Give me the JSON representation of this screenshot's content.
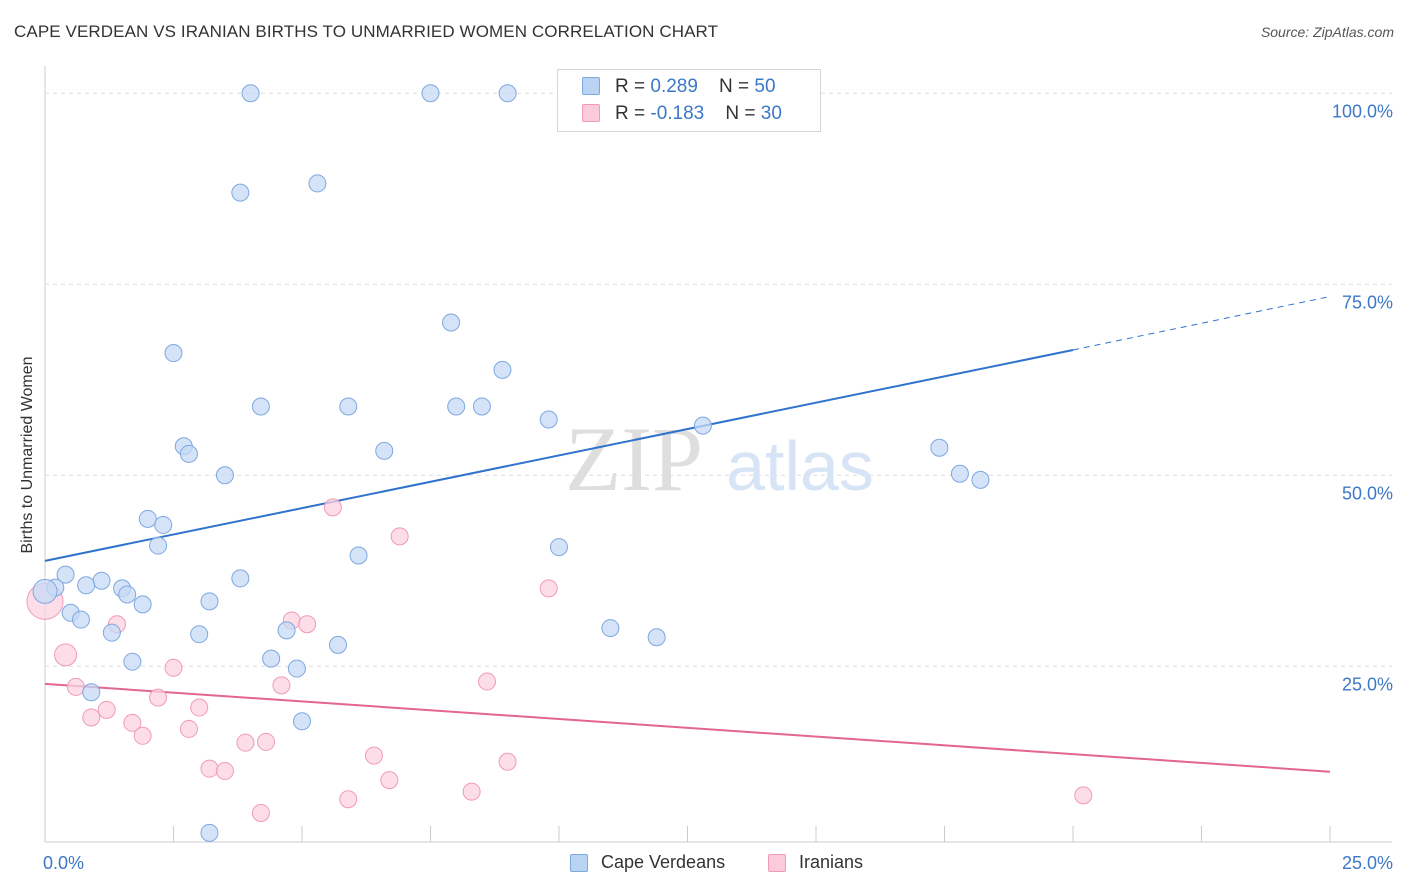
{
  "title": "CAPE VERDEAN VS IRANIAN BIRTHS TO UNMARRIED WOMEN CORRELATION CHART",
  "source": "Source: ZipAtlas.com",
  "watermark": {
    "zip": "ZIP",
    "atlas": "atlas"
  },
  "legend_top": {
    "rows": [
      {
        "r_label": "R = ",
        "r_value": "0.289",
        "n_label": "N = ",
        "n_value": "50",
        "color": "#b9d3f3"
      },
      {
        "r_label": "R = ",
        "r_value": "-0.183",
        "n_label": "N = ",
        "n_value": "30",
        "color": "#fbcbdb"
      }
    ]
  },
  "legend_bottom": {
    "items": [
      {
        "label": "Cape Verdeans",
        "color": "#b9d3f3"
      },
      {
        "label": "Iranians",
        "color": "#fbcbdb"
      }
    ]
  },
  "chart_data": {
    "type": "scatter",
    "title": "CAPE VERDEAN VS IRANIAN BIRTHS TO UNMARRIED WOMEN CORRELATION CHART",
    "xlabel": "",
    "ylabel": "Births to Unmarried Women",
    "xlim": [
      0,
      25
    ],
    "ylim": [
      2,
      102
    ],
    "x_tick_labels": [
      {
        "value": 0,
        "label": "0.0%"
      },
      {
        "value": 25,
        "label": "25.0%"
      }
    ],
    "y_tick_labels": [
      {
        "value": 25,
        "label": "25.0%"
      },
      {
        "value": 50,
        "label": "50.0%"
      },
      {
        "value": 75,
        "label": "75.0%"
      },
      {
        "value": 100,
        "label": "100.0%"
      }
    ],
    "x_minor_ticks": [
      2.5,
      5,
      7.5,
      10,
      12.5,
      15,
      17.5,
      20,
      22.5,
      25
    ],
    "y_gridlines": [
      25,
      50,
      75,
      100
    ],
    "series": [
      {
        "name": "Cape Verdeans",
        "color": "#7ea8df",
        "fill": "#c5daf5",
        "line_color": "#2f73cc",
        "trend": {
          "x0": 0,
          "y0": 38.8,
          "x1": 20,
          "y1": 66.4,
          "dash_to_x": 25,
          "dash_to_y": 73.4
        },
        "points": [
          [
            4.0,
            100.0
          ],
          [
            7.5,
            100.0
          ],
          [
            9.0,
            100.0
          ],
          [
            3.8,
            87.0
          ],
          [
            5.3,
            88.2
          ],
          [
            7.9,
            70.0
          ],
          [
            2.5,
            66.0
          ],
          [
            8.9,
            63.8
          ],
          [
            4.2,
            59.0
          ],
          [
            5.9,
            59.0
          ],
          [
            8.0,
            59.0
          ],
          [
            8.5,
            59.0
          ],
          [
            9.8,
            57.3
          ],
          [
            12.8,
            56.5
          ],
          [
            2.7,
            53.8
          ],
          [
            2.8,
            52.8
          ],
          [
            6.6,
            53.2
          ],
          [
            3.5,
            50.0
          ],
          [
            17.4,
            53.6
          ],
          [
            17.8,
            50.2
          ],
          [
            18.2,
            49.4
          ],
          [
            2.0,
            44.3
          ],
          [
            2.3,
            43.5
          ],
          [
            2.2,
            40.8
          ],
          [
            6.1,
            39.5
          ],
          [
            10.0,
            40.6
          ],
          [
            0.4,
            37.0
          ],
          [
            3.8,
            36.5
          ],
          [
            1.1,
            36.2
          ],
          [
            0.8,
            35.6
          ],
          [
            0.2,
            35.3
          ],
          [
            1.5,
            35.2
          ],
          [
            1.6,
            34.4
          ],
          [
            1.9,
            33.1
          ],
          [
            3.2,
            33.5
          ],
          [
            0.5,
            32.0
          ],
          [
            0.7,
            31.1
          ],
          [
            1.3,
            29.4
          ],
          [
            3.0,
            29.2
          ],
          [
            4.7,
            29.7
          ],
          [
            11.0,
            30.0
          ],
          [
            11.9,
            28.8
          ],
          [
            5.7,
            27.8
          ],
          [
            1.7,
            25.6
          ],
          [
            4.4,
            26.0
          ],
          [
            4.9,
            24.7
          ],
          [
            0.9,
            21.6
          ],
          [
            5.0,
            17.8
          ],
          [
            3.2,
            3.2
          ],
          [
            0.0,
            34.8
          ]
        ]
      },
      {
        "name": "Iranians",
        "color": "#f09ab8",
        "fill": "#fcd3e0",
        "line_color": "#e36591",
        "trend": {
          "x0": 0,
          "y0": 22.7,
          "x1": 25,
          "y1": 11.2
        },
        "points": [
          [
            0.0,
            33.5
          ],
          [
            0.4,
            26.5
          ],
          [
            1.4,
            30.5
          ],
          [
            4.8,
            31.0
          ],
          [
            5.1,
            30.5
          ],
          [
            5.6,
            45.8
          ],
          [
            6.9,
            42.0
          ],
          [
            9.8,
            35.2
          ],
          [
            2.5,
            24.8
          ],
          [
            4.6,
            22.5
          ],
          [
            8.6,
            23.0
          ],
          [
            0.6,
            22.3
          ],
          [
            2.2,
            20.9
          ],
          [
            3.0,
            19.6
          ],
          [
            1.2,
            19.3
          ],
          [
            0.9,
            18.3
          ],
          [
            1.7,
            17.6
          ],
          [
            2.8,
            16.8
          ],
          [
            1.9,
            15.9
          ],
          [
            3.9,
            15.0
          ],
          [
            4.3,
            15.1
          ],
          [
            6.4,
            13.3
          ],
          [
            9.0,
            12.5
          ],
          [
            3.2,
            11.6
          ],
          [
            3.5,
            11.3
          ],
          [
            6.7,
            10.1
          ],
          [
            8.3,
            8.6
          ],
          [
            5.9,
            7.6
          ],
          [
            4.2,
            5.8
          ],
          [
            20.2,
            8.1
          ]
        ]
      }
    ]
  }
}
